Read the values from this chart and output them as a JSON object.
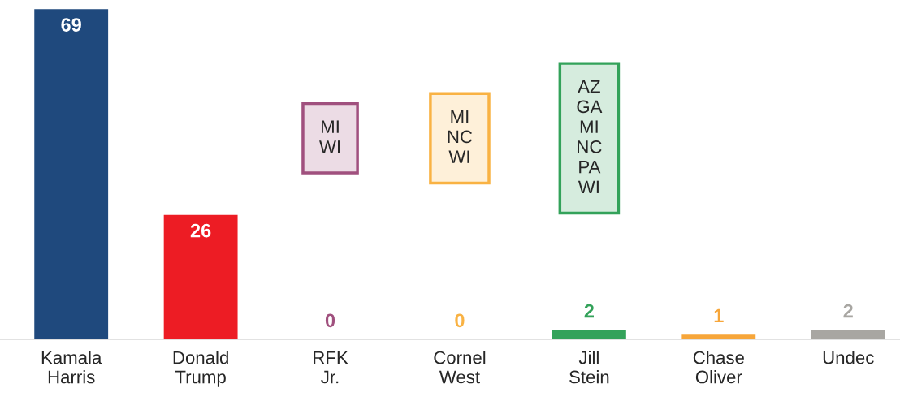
{
  "chart_data": {
    "type": "bar",
    "categories": [
      "Kamala\nHarris",
      "Donald\nTrump",
      "RFK\nJr.",
      "Cornel\nWest",
      "Jill\nStein",
      "Chase\nOliver",
      "Undec"
    ],
    "values": [
      69,
      26,
      0,
      0,
      2,
      1,
      2
    ],
    "colors": [
      "#1f497d",
      "#ed1c24",
      "#a0507e",
      "#f9b243",
      "#33a25a",
      "#f7a63a",
      "#a8a6a2"
    ],
    "data_labels": true,
    "grid": false,
    "legend": false,
    "annotations": [
      "MI\nWI",
      "MI\nNC\nWI",
      "AZ\nGA\nMI\nNC\nPA\nWI"
    ]
  }
}
